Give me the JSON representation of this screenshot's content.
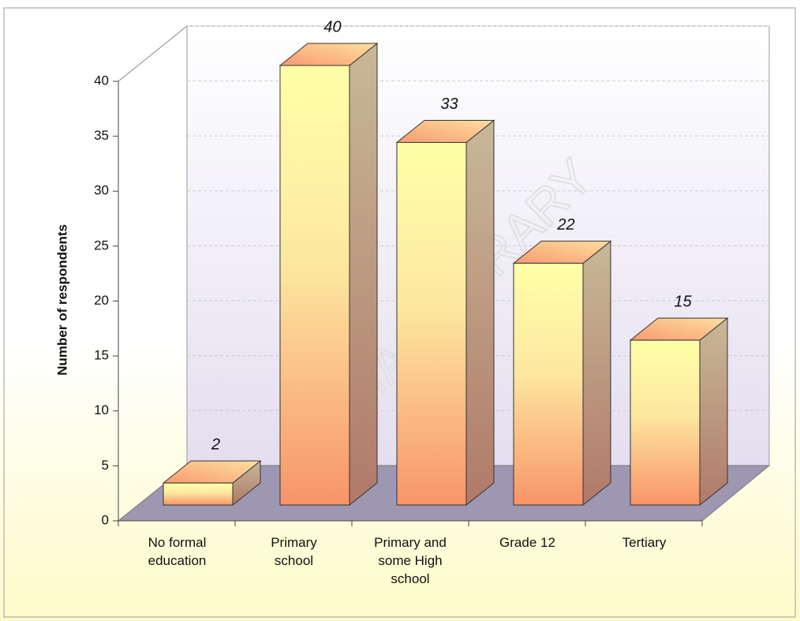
{
  "chart_data": {
    "type": "bar3d",
    "y_label": "Number of respondents",
    "categories": [
      "No formal education",
      "Primary school",
      "Primary and some High school",
      "Grade 12",
      "Tertiary"
    ],
    "values": [
      2,
      40,
      33,
      22,
      15
    ],
    "ylim": [
      0,
      40
    ],
    "yticks": [
      0,
      5,
      10,
      15,
      20,
      25,
      30,
      35,
      40
    ],
    "grid": true,
    "watermark": "ESRIA - LIBRARY"
  }
}
